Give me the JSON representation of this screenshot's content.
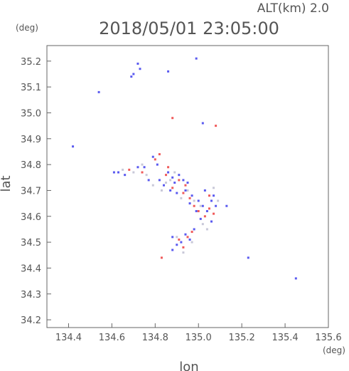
{
  "header": {
    "altitude_label": "ALT(km) 2.0",
    "timestamp": "2018/05/01 23:05:00"
  },
  "chart_data": {
    "type": "scatter",
    "title": "2018/05/01 23:05:00",
    "subtitle": "ALT(km) 2.0",
    "xlabel": "lon",
    "ylabel": "lat",
    "x_unit": "(deg)",
    "y_unit": "(deg)",
    "xlim": [
      134.3,
      135.6
    ],
    "ylim": [
      34.17,
      35.26
    ],
    "x_ticks": [
      "134.4",
      "134.6",
      "134.8",
      "135.0",
      "135.2",
      "135.4",
      "135.6"
    ],
    "y_ticks": [
      "34.2",
      "34.3",
      "34.4",
      "34.5",
      "34.6",
      "34.7",
      "34.8",
      "34.9",
      "35.0",
      "35.1",
      "35.2"
    ],
    "grid": false,
    "series": [
      {
        "color": "#5a5af0",
        "points": [
          [
            134.42,
            34.87
          ],
          [
            134.54,
            35.08
          ],
          [
            134.61,
            34.77
          ],
          [
            134.63,
            34.77
          ],
          [
            134.66,
            34.76
          ],
          [
            134.69,
            35.14
          ],
          [
            134.7,
            35.15
          ],
          [
            134.72,
            35.19
          ],
          [
            134.73,
            35.17
          ],
          [
            134.72,
            34.79
          ],
          [
            134.75,
            34.79
          ],
          [
            134.77,
            34.74
          ],
          [
            134.79,
            34.83
          ],
          [
            134.81,
            34.8
          ],
          [
            134.82,
            34.74
          ],
          [
            134.84,
            34.72
          ],
          [
            134.86,
            34.77
          ],
          [
            134.86,
            35.16
          ],
          [
            134.87,
            34.7
          ],
          [
            134.88,
            34.75
          ],
          [
            134.89,
            34.73
          ],
          [
            134.9,
            34.69
          ],
          [
            134.91,
            34.76
          ],
          [
            134.93,
            34.74
          ],
          [
            134.94,
            34.7
          ],
          [
            134.95,
            34.73
          ],
          [
            134.96,
            34.65
          ],
          [
            134.97,
            34.68
          ],
          [
            134.99,
            34.62
          ],
          [
            135.0,
            34.66
          ],
          [
            135.01,
            34.59
          ],
          [
            135.02,
            34.64
          ],
          [
            135.03,
            34.7
          ],
          [
            135.04,
            34.62
          ],
          [
            135.06,
            34.66
          ],
          [
            135.07,
            34.68
          ],
          [
            135.08,
            34.64
          ],
          [
            135.06,
            34.58
          ],
          [
            134.88,
            34.52
          ],
          [
            134.9,
            34.49
          ],
          [
            134.92,
            34.5
          ],
          [
            134.94,
            34.53
          ],
          [
            134.96,
            34.51
          ],
          [
            134.98,
            34.55
          ],
          [
            134.88,
            34.47
          ],
          [
            135.13,
            34.64
          ],
          [
            135.23,
            34.44
          ],
          [
            135.45,
            34.36
          ],
          [
            134.99,
            35.21
          ],
          [
            135.02,
            34.96
          ]
        ]
      },
      {
        "color": "#f05a5a",
        "points": [
          [
            134.68,
            34.78
          ],
          [
            134.74,
            34.77
          ],
          [
            134.8,
            34.82
          ],
          [
            134.82,
            34.84
          ],
          [
            134.85,
            34.76
          ],
          [
            134.88,
            34.71
          ],
          [
            134.88,
            34.98
          ],
          [
            134.91,
            34.74
          ],
          [
            134.93,
            34.69
          ],
          [
            134.96,
            34.67
          ],
          [
            134.98,
            34.64
          ],
          [
            135.0,
            34.62
          ],
          [
            135.03,
            34.6
          ],
          [
            135.05,
            34.68
          ],
          [
            135.07,
            34.61
          ],
          [
            135.08,
            34.95
          ],
          [
            134.91,
            34.51
          ],
          [
            134.93,
            34.48
          ],
          [
            134.95,
            34.52
          ],
          [
            134.97,
            34.54
          ],
          [
            134.83,
            34.44
          ],
          [
            135.05,
            34.63
          ],
          [
            134.86,
            34.79
          ],
          [
            134.94,
            34.72
          ]
        ]
      },
      {
        "color": "#c8c8d8",
        "points": [
          [
            134.7,
            34.77
          ],
          [
            134.76,
            34.76
          ],
          [
            134.79,
            34.72
          ],
          [
            134.83,
            34.7
          ],
          [
            134.85,
            34.73
          ],
          [
            134.89,
            34.77
          ],
          [
            134.92,
            34.67
          ],
          [
            134.95,
            34.7
          ],
          [
            134.98,
            34.66
          ],
          [
            135.01,
            34.64
          ],
          [
            135.02,
            34.57
          ],
          [
            135.04,
            34.55
          ],
          [
            134.9,
            34.52
          ],
          [
            134.93,
            34.46
          ],
          [
            134.97,
            34.5
          ],
          [
            135.07,
            34.71
          ],
          [
            135.09,
            34.66
          ],
          [
            134.87,
            34.74
          ],
          [
            134.74,
            34.8
          ],
          [
            134.65,
            34.78
          ]
        ]
      }
    ]
  }
}
